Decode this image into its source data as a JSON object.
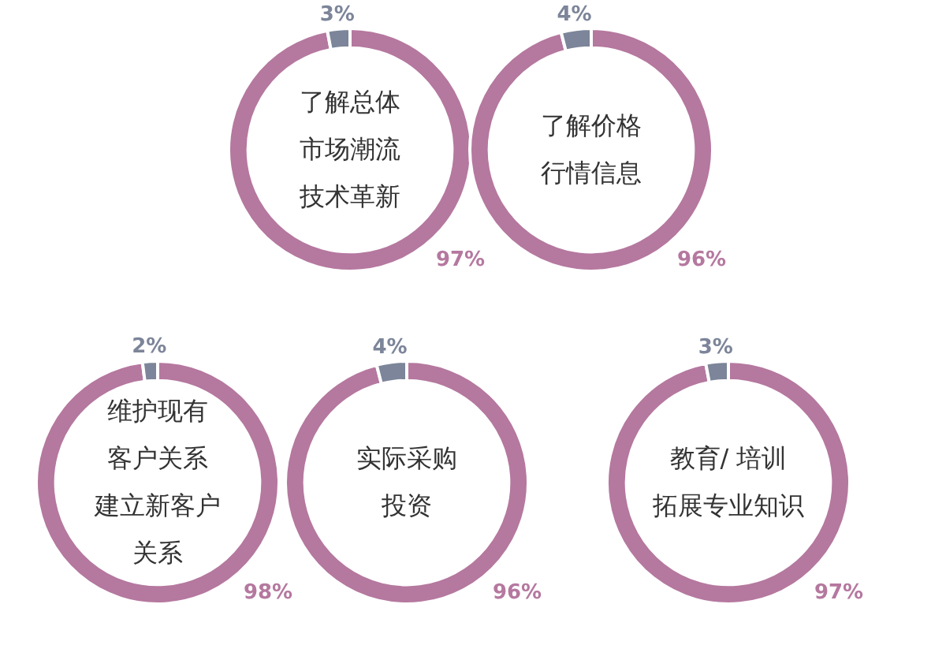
{
  "chart_data": [
    {
      "type": "donut",
      "title": "了解总体市场潮流技术革新",
      "categories": [
        null,
        null
      ],
      "values": [
        97,
        3
      ],
      "colors": [
        "#b5789f",
        "#7c8599"
      ],
      "value_labels": [
        "97%",
        "3%"
      ]
    },
    {
      "type": "donut",
      "title": "了解价格行情信息",
      "categories": [
        null,
        null
      ],
      "values": [
        96,
        4
      ],
      "colors": [
        "#b5789f",
        "#7c8599"
      ],
      "value_labels": [
        "96%",
        "4%"
      ]
    },
    {
      "type": "donut",
      "title": "维护现有客户关系建立新客户关系",
      "categories": [
        null,
        null
      ],
      "values": [
        98,
        2
      ],
      "colors": [
        "#b5789f",
        "#7c8599"
      ],
      "value_labels": [
        "98%",
        "2%"
      ]
    },
    {
      "type": "donut",
      "title": "实际采购投资",
      "categories": [
        null,
        null
      ],
      "values": [
        96,
        4
      ],
      "colors": [
        "#b5789f",
        "#7c8599"
      ],
      "value_labels": [
        "96%",
        "4%"
      ]
    },
    {
      "type": "donut",
      "title": "教育/ 培训拓展专业知识",
      "categories": [
        null,
        null
      ],
      "values": [
        97,
        3
      ],
      "colors": [
        "#b5789f",
        "#7c8599"
      ],
      "value_labels": [
        "97%",
        "3%"
      ]
    }
  ]
}
